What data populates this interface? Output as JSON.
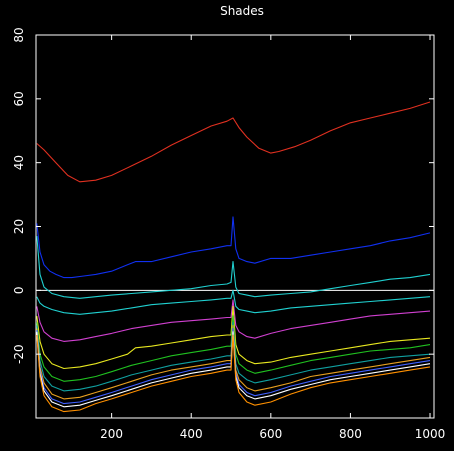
{
  "chart_data": {
    "type": "line",
    "title": "Shades",
    "xlabel": "",
    "ylabel": "",
    "xlim": [
      10,
      1010
    ],
    "ylim": [
      -40,
      80
    ],
    "xticks": [
      200,
      400,
      600,
      800,
      1000
    ],
    "yticks": [
      -20,
      0,
      20,
      40,
      60,
      80
    ],
    "divider_y": 0,
    "background": "#000000",
    "axis_color": "#ffffff",
    "series": [
      {
        "color": "#e03020",
        "x": [
          12,
          30,
          60,
          90,
          120,
          160,
          200,
          250,
          300,
          350,
          400,
          450,
          490,
          505,
          520,
          540,
          570,
          600,
          620,
          660,
          700,
          750,
          800,
          850,
          900,
          950,
          1000
        ],
        "y": [
          46,
          44,
          40,
          36,
          34,
          34.5,
          36,
          39,
          42,
          45.5,
          48.5,
          51.5,
          53,
          54,
          51,
          48,
          44.5,
          43,
          43.5,
          45,
          47,
          50,
          52.5,
          54,
          55.5,
          57,
          59
        ]
      },
      {
        "color": "#1030f0",
        "x": [
          12,
          20,
          30,
          45,
          60,
          80,
          100,
          130,
          160,
          200,
          240,
          260,
          300,
          350,
          400,
          450,
          490,
          500,
          505,
          512,
          520,
          540,
          560,
          600,
          650,
          700,
          750,
          800,
          850,
          900,
          950,
          1000
        ],
        "y": [
          21,
          12,
          8,
          6,
          5,
          4,
          4,
          4.5,
          5,
          6,
          8,
          9,
          9,
          10.5,
          12,
          13,
          14,
          14,
          23,
          13,
          10,
          9,
          8.5,
          10,
          10,
          11,
          12,
          13,
          14,
          15.5,
          16.5,
          18
        ]
      },
      {
        "color": "#20d0d0",
        "x": [
          12,
          20,
          30,
          50,
          80,
          120,
          160,
          200,
          250,
          300,
          350,
          400,
          450,
          490,
          500,
          505,
          512,
          520,
          540,
          560,
          600,
          650,
          700,
          750,
          800,
          850,
          900,
          950,
          1000
        ],
        "y": [
          17,
          5,
          1,
          -1,
          -2,
          -2.5,
          -2,
          -1.5,
          -1,
          -0.5,
          0,
          0.5,
          1.5,
          2,
          2.5,
          9,
          1,
          -1,
          -1.5,
          -2,
          -1.5,
          -1,
          -0.5,
          0.5,
          1.5,
          2.5,
          3.5,
          4,
          5
        ]
      },
      {
        "color": "#20d0d0",
        "x": [
          12,
          20,
          30,
          50,
          80,
          120,
          160,
          200,
          250,
          300,
          350,
          400,
          450,
          490,
          500,
          505,
          512,
          520,
          540,
          560,
          600,
          650,
          700,
          750,
          800,
          850,
          900,
          950,
          1000
        ],
        "y": [
          -2,
          -4,
          -5,
          -6,
          -7,
          -7.5,
          -7,
          -6.5,
          -5.5,
          -4.5,
          -4,
          -3.5,
          -3,
          -2.5,
          -2.5,
          0,
          -5,
          -6,
          -6.5,
          -7,
          -6.5,
          -5.5,
          -5,
          -4.5,
          -4,
          -3.5,
          -3,
          -2.5,
          -2
        ]
      },
      {
        "color": "#d040d0",
        "x": [
          12,
          20,
          30,
          50,
          80,
          120,
          160,
          200,
          250,
          300,
          350,
          400,
          450,
          490,
          500,
          505,
          512,
          520,
          540,
          560,
          600,
          650,
          700,
          750,
          800,
          850,
          900,
          950,
          1000
        ],
        "y": [
          -5,
          -10,
          -13,
          -15,
          -16,
          -15.5,
          -14.5,
          -13.5,
          -12,
          -11,
          -10,
          -9.5,
          -9,
          -8.5,
          -8.5,
          -3,
          -11,
          -13,
          -14.5,
          -15,
          -13.5,
          -12,
          -11,
          -10,
          -9,
          -8,
          -7.5,
          -7,
          -6.5
        ]
      },
      {
        "color": "#e8e820",
        "x": [
          12,
          20,
          30,
          50,
          80,
          120,
          160,
          200,
          240,
          260,
          300,
          350,
          400,
          450,
          490,
          500,
          505,
          512,
          520,
          540,
          560,
          600,
          650,
          700,
          750,
          800,
          850,
          900,
          950,
          1000
        ],
        "y": [
          -8,
          -16,
          -20,
          -23,
          -24.5,
          -24,
          -23,
          -21.5,
          -20,
          -18,
          -17.5,
          -16.5,
          -15.5,
          -14.5,
          -14,
          -14,
          -5,
          -17,
          -20,
          -22,
          -23,
          -22.5,
          -21,
          -20,
          -19,
          -18,
          -17,
          -16,
          -15.5,
          -15
        ]
      },
      {
        "color": "#20c020",
        "x": [
          12,
          20,
          30,
          50,
          80,
          120,
          160,
          200,
          250,
          300,
          350,
          400,
          450,
          490,
          500,
          505,
          512,
          520,
          540,
          560,
          600,
          650,
          700,
          750,
          800,
          850,
          900,
          950,
          1000
        ],
        "y": [
          -10,
          -20,
          -24,
          -27,
          -28.5,
          -28,
          -27,
          -25.5,
          -23.5,
          -22,
          -20.5,
          -19.5,
          -18.5,
          -17.5,
          -17.5,
          -8,
          -20,
          -23,
          -25,
          -26,
          -25,
          -23.5,
          -22,
          -21,
          -20,
          -19,
          -18.5,
          -18,
          -17
        ]
      },
      {
        "color": "#10a0a0",
        "x": [
          12,
          20,
          30,
          50,
          80,
          120,
          160,
          200,
          250,
          300,
          350,
          400,
          450,
          490,
          500,
          505,
          512,
          520,
          540,
          560,
          600,
          650,
          700,
          750,
          800,
          850,
          900,
          950,
          1000
        ],
        "y": [
          -11,
          -22,
          -27,
          -30,
          -31.5,
          -31,
          -30,
          -28.5,
          -26.5,
          -25,
          -23.5,
          -22.5,
          -21.5,
          -20.5,
          -20.5,
          -10,
          -23,
          -26,
          -28,
          -29,
          -28,
          -26.5,
          -25,
          -24,
          -23,
          -22,
          -21,
          -20.5,
          -20
        ]
      },
      {
        "color": "#e8a020",
        "x": [
          12,
          20,
          30,
          50,
          80,
          120,
          160,
          200,
          250,
          300,
          350,
          400,
          450,
          490,
          500,
          505,
          512,
          520,
          540,
          560,
          600,
          650,
          700,
          750,
          800,
          850,
          900,
          950,
          1000
        ],
        "y": [
          -12,
          -24,
          -29,
          -32.5,
          -34,
          -33.5,
          -32,
          -30.5,
          -28.5,
          -26.5,
          -25,
          -24,
          -23,
          -22,
          -22,
          -11,
          -25,
          -28,
          -30.5,
          -31.5,
          -30.5,
          -29,
          -27,
          -26,
          -25,
          -24,
          -23,
          -22,
          -21
        ]
      },
      {
        "color": "#4060ff",
        "x": [
          12,
          20,
          30,
          50,
          80,
          120,
          160,
          200,
          250,
          300,
          350,
          400,
          450,
          490,
          500,
          505,
          512,
          520,
          540,
          560,
          600,
          650,
          700,
          750,
          800,
          850,
          900,
          950,
          1000
        ],
        "y": [
          -12.5,
          -25,
          -30.5,
          -34,
          -35.5,
          -35,
          -33.5,
          -32,
          -30,
          -28,
          -26.5,
          -25,
          -24,
          -23,
          -23,
          -12,
          -26,
          -29.5,
          -32,
          -33,
          -32,
          -30,
          -28.5,
          -27,
          -26,
          -25,
          -24,
          -23,
          -22
        ]
      },
      {
        "color": "#ffffff",
        "x": [
          12,
          20,
          30,
          50,
          80,
          120,
          160,
          200,
          250,
          300,
          350,
          400,
          450,
          490,
          500,
          505,
          512,
          520,
          540,
          560,
          600,
          650,
          700,
          750,
          800,
          850,
          900,
          950,
          1000
        ],
        "y": [
          -13,
          -26,
          -31.5,
          -35,
          -36.5,
          -36,
          -34.5,
          -33,
          -31,
          -29,
          -27.5,
          -26,
          -25,
          -24,
          -24,
          -13,
          -27,
          -30.5,
          -33,
          -34,
          -33,
          -31,
          -29.5,
          -28,
          -27,
          -26,
          -25,
          -24,
          -23
        ]
      },
      {
        "color": "#ff9000",
        "x": [
          12,
          20,
          30,
          50,
          80,
          120,
          160,
          200,
          250,
          300,
          350,
          400,
          450,
          490,
          500,
          505,
          512,
          520,
          540,
          560,
          600,
          650,
          700,
          750,
          800,
          850,
          900,
          950,
          1000
        ],
        "y": [
          -14,
          -27,
          -33,
          -36.5,
          -38,
          -37.5,
          -35.5,
          -34,
          -32,
          -30,
          -28.5,
          -27,
          -26,
          -25,
          -25,
          -14,
          -28,
          -32,
          -35,
          -36,
          -35,
          -32.5,
          -30.5,
          -29,
          -28,
          -27,
          -26,
          -25,
          -24
        ]
      }
    ]
  }
}
